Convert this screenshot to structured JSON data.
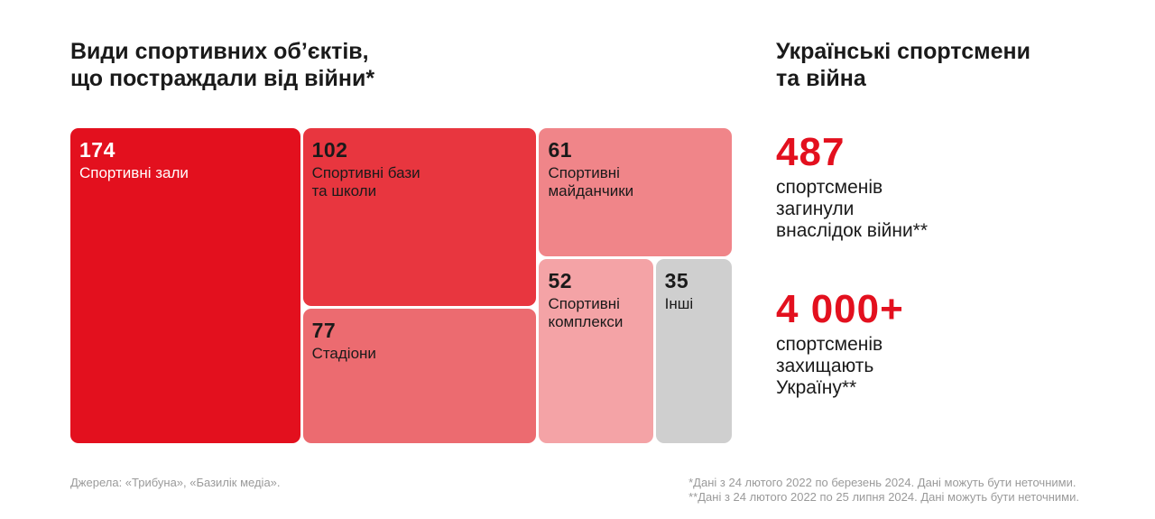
{
  "left": {
    "title_lines": [
      "Види спортивних об’єктів,",
      "що постраждали від війни*"
    ]
  },
  "chart_data": {
    "type": "treemap",
    "title": "Види спортивних об’єктів, що постраждали від війни*",
    "items": [
      {
        "value": 174,
        "label": "Спортивні зали",
        "color": "#e3101e"
      },
      {
        "value": 102,
        "label": "Спортивні бази\nта школи",
        "color": "#e8363f"
      },
      {
        "value": 77,
        "label": "Стадіони",
        "color": "#ec6b70"
      },
      {
        "value": 61,
        "label": "Спортивні\nмайданчики",
        "color": "#f08589"
      },
      {
        "value": 52,
        "label": "Спортивні\nкомплекси",
        "color": "#f4a3a6"
      },
      {
        "value": 35,
        "label": "Інші",
        "color": "#cfcfcf"
      }
    ]
  },
  "right": {
    "title_lines": [
      "Українські спортсмени",
      "та війна"
    ],
    "stats": [
      {
        "value": "487",
        "desc_lines": [
          "спортсменів",
          "загинули",
          "внаслідок війни**"
        ]
      },
      {
        "value": "4 000+",
        "desc_lines": [
          "спортсменів",
          "захищають",
          "Україну**"
        ]
      }
    ]
  },
  "footer": {
    "sources": "Джерела: «Трибуна», «Базилік медіа».",
    "notes": [
      "*Дані з 24 лютого 2022 по березень 2024. Дані можуть бути неточними.",
      "**Дані з 24 лютого 2022 по 25 липня 2024. Дані можуть бути неточними."
    ]
  }
}
